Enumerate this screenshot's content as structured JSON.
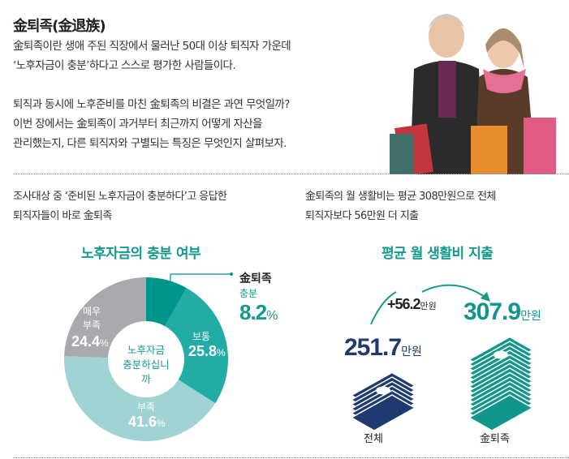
{
  "header": {
    "title": "金퇴족(金退族)"
  },
  "intro": [
    "金퇴족이란 생애 주된 직장에서 물러난 50대 이상 퇴직자 가운데",
    "‘노후자금이 충분’하다고 스스로 평가한 사람들이다.",
    "퇴직과 동시에 노후준비를 마친 金퇴족의 비결은 과연 무엇일까?",
    "이번 장에서는 金퇴족이 과거부터 최근까지 어떻게 자산을",
    "관리했는지, 다른 퇴직자와 구별되는 특징은 무엇인지 살펴보자."
  ],
  "left_caption": [
    "조사대상 중 ‘준비된 노후자금이 충분하다’고 응답한",
    "퇴직자들이 바로 金퇴족"
  ],
  "right_caption": [
    "金퇴족의 월 생활비는 평균 308만원으로 전체",
    "퇴직자보다 56만원 더 지출"
  ],
  "chart_data": [
    {
      "type": "pie",
      "title": "노후자금의 충분 여부",
      "center_label": [
        "노후자금",
        "충분하십니까"
      ],
      "categories": [
        "충분",
        "보통",
        "부족",
        "매우 부족"
      ],
      "values": [
        8.2,
        25.8,
        41.6,
        24.4
      ],
      "unit": "%",
      "colors": [
        "#00958c",
        "#22aca6",
        "#a0d4d4",
        "#aaaaae"
      ],
      "callout": {
        "group": "金퇴족",
        "label": "충분",
        "value": "8.2"
      },
      "labels": {
        "normal": "보통",
        "short": "부족",
        "very_short": [
          "매우",
          "부족"
        ]
      },
      "display": [
        "8.2",
        "25.8",
        "41.6",
        "24.4"
      ],
      "pct_sign": "%"
    },
    {
      "type": "bar",
      "title": "평균 월 생활비 지출",
      "categories": [
        "전체",
        "金퇴족"
      ],
      "values": [
        251.7,
        307.9
      ],
      "unit": "만원",
      "display": [
        "251.7",
        "307.9"
      ],
      "difference": "+56.2",
      "colors": [
        "#1f3a6f",
        "#12968c"
      ]
    }
  ]
}
